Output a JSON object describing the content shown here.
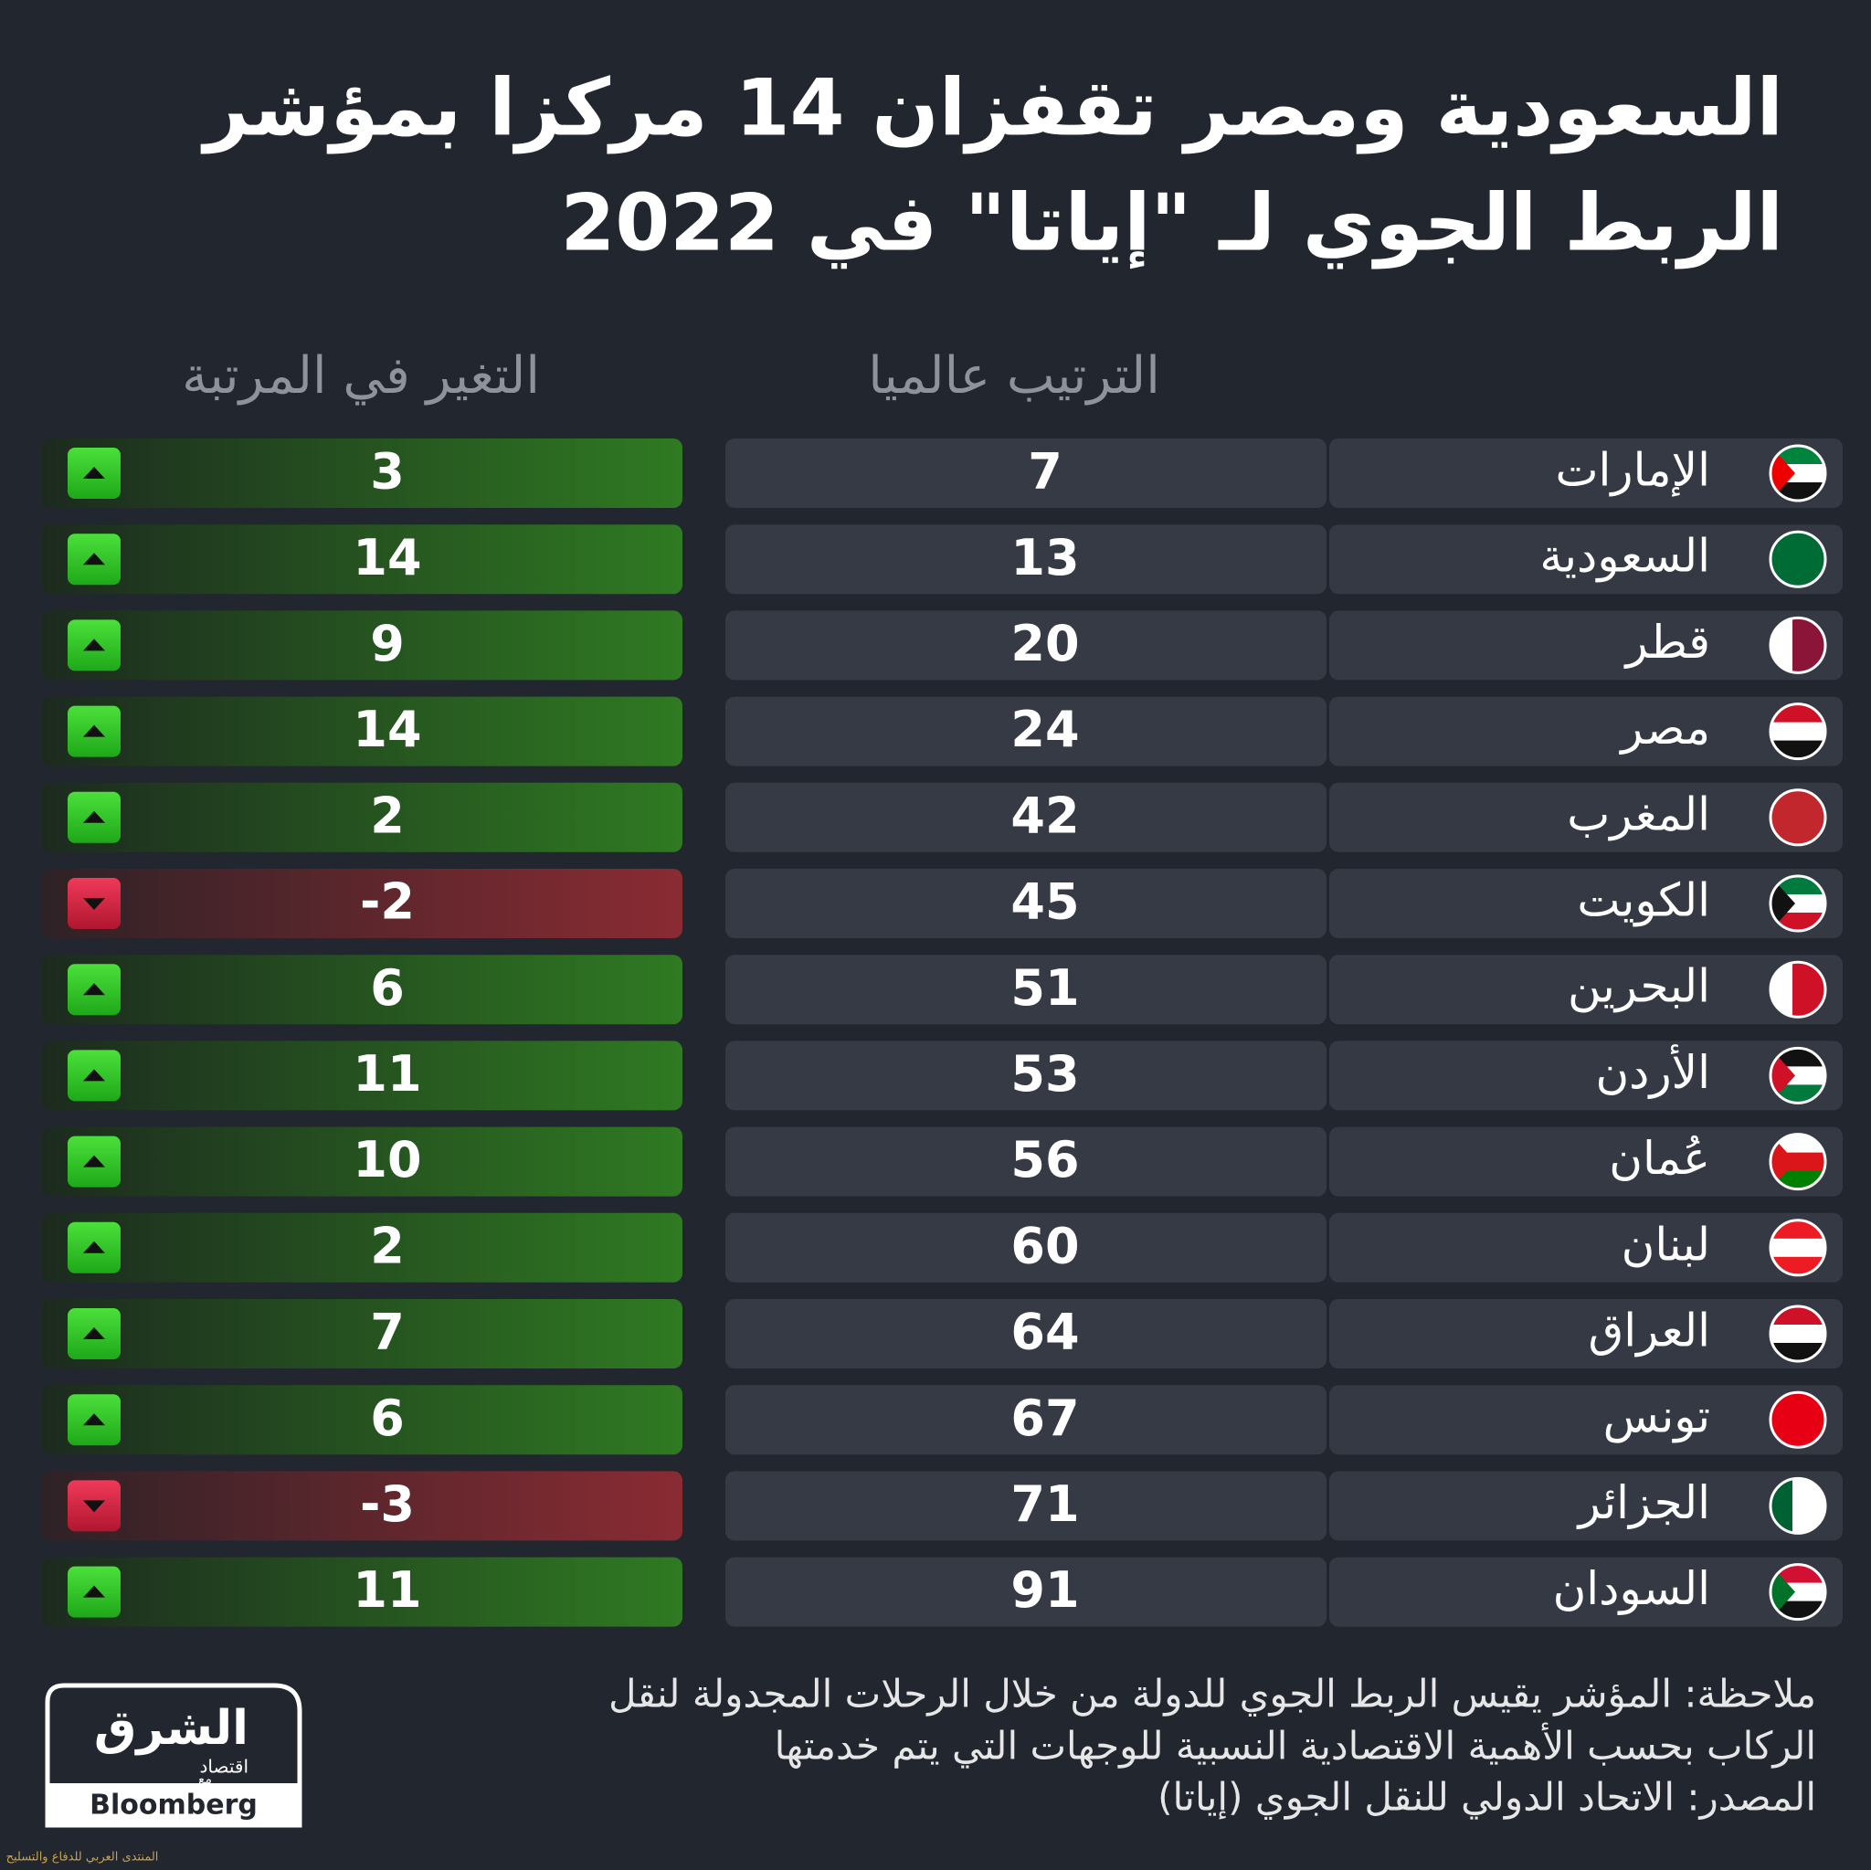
{
  "header": {
    "title_lines": [
      "السعودية ومصر تقفزان 14 مركزا بمؤشر",
      "الربط الجوي لـ \"إياتا\" في 2022"
    ]
  },
  "table": {
    "columns": [
      "الترتيب عالميا",
      "التغير في المرتبة"
    ],
    "rows": [
      [
        "الإمارات",
        7,
        3
      ],
      [
        "السعودية",
        13,
        14
      ],
      [
        "قطر",
        20,
        9
      ],
      [
        "مصر",
        24,
        14
      ],
      [
        "المغرب",
        42,
        2
      ],
      [
        "الكويت",
        45,
        -2
      ],
      [
        "البحرين",
        51,
        6
      ],
      [
        "الأردن",
        53,
        11
      ],
      [
        "عُمان",
        56,
        10
      ],
      [
        "لبنان",
        60,
        2
      ],
      [
        "العراق",
        64,
        7
      ],
      [
        "تونس",
        67,
        6
      ],
      [
        "الجزائر",
        71,
        -3
      ],
      [
        "السودان",
        91,
        11
      ]
    ]
  },
  "footer": {
    "notes": [
      "ملاحظة: المؤشر يقيس الربط الجوي للدولة من خلال الرحلات المجدولة لنقل",
      "الركاب بحسب الأهمية الاقتصادية النسبية للوجهات التي يتم خدمتها",
      "المصدر: الاتحاد الدولي للنقل الجوي (إياتا)"
    ],
    "logo": {
      "brand": "الشرق",
      "section": "اقتصاد",
      "with": "مع",
      "partner": "Bloomberg"
    },
    "watermark": "المنتدى العربي للدفاع والتسليح"
  }
}
